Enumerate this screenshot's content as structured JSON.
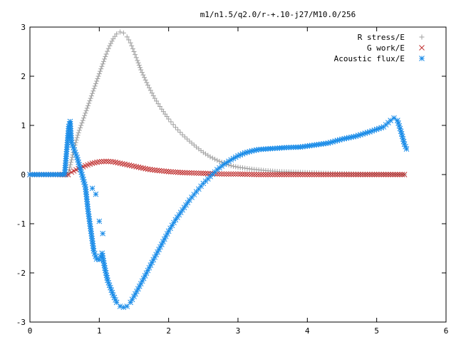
{
  "chart_data": {
    "type": "scatter",
    "title": "m1/n1.5/q2.0/r-+.10-j27/M10.0/256",
    "xlabel": "",
    "ylabel": "",
    "xlim": [
      0,
      6
    ],
    "ylim": [
      -3,
      3
    ],
    "x_ticks": [
      "0",
      "1",
      "2",
      "3",
      "4",
      "5",
      "6"
    ],
    "y_ticks": [
      "3",
      "2",
      "1",
      "0",
      "-1",
      "-2",
      "-3"
    ],
    "grid": false,
    "legend_position": "top-right",
    "series": [
      {
        "name": "R stress/E",
        "marker": "plus",
        "color": "#a0a0a0",
        "points": [
          [
            0.0,
            0.0
          ],
          [
            0.2,
            0.0
          ],
          [
            0.4,
            0.0
          ],
          [
            0.55,
            0.0
          ],
          [
            0.6,
            0.3
          ],
          [
            0.65,
            0.6
          ],
          [
            0.7,
            0.85
          ],
          [
            0.75,
            1.05
          ],
          [
            0.8,
            1.25
          ],
          [
            0.85,
            1.45
          ],
          [
            0.9,
            1.65
          ],
          [
            0.95,
            1.85
          ],
          [
            1.0,
            2.05
          ],
          [
            1.05,
            2.25
          ],
          [
            1.1,
            2.45
          ],
          [
            1.15,
            2.62
          ],
          [
            1.2,
            2.76
          ],
          [
            1.25,
            2.86
          ],
          [
            1.3,
            2.9
          ],
          [
            1.35,
            2.88
          ],
          [
            1.4,
            2.8
          ],
          [
            1.45,
            2.68
          ],
          [
            1.5,
            2.5
          ],
          [
            1.55,
            2.32
          ],
          [
            1.6,
            2.13
          ],
          [
            1.7,
            1.82
          ],
          [
            1.8,
            1.55
          ],
          [
            1.9,
            1.33
          ],
          [
            2.0,
            1.13
          ],
          [
            2.1,
            0.96
          ],
          [
            2.2,
            0.81
          ],
          [
            2.3,
            0.68
          ],
          [
            2.4,
            0.56
          ],
          [
            2.5,
            0.45
          ],
          [
            2.6,
            0.36
          ],
          [
            2.7,
            0.29
          ],
          [
            2.8,
            0.23
          ],
          [
            2.9,
            0.18
          ],
          [
            3.0,
            0.15
          ],
          [
            3.2,
            0.11
          ],
          [
            3.4,
            0.08
          ],
          [
            3.6,
            0.06
          ],
          [
            3.8,
            0.05
          ],
          [
            4.0,
            0.04
          ],
          [
            4.2,
            0.03
          ],
          [
            4.5,
            0.02
          ],
          [
            4.8,
            0.01
          ],
          [
            5.1,
            0.01
          ],
          [
            5.4,
            0.0
          ]
        ]
      },
      {
        "name": "G work/E",
        "marker": "cross",
        "color": "#c03030",
        "points": [
          [
            0.0,
            0.0
          ],
          [
            0.2,
            0.0
          ],
          [
            0.4,
            0.0
          ],
          [
            0.55,
            0.0
          ],
          [
            0.6,
            0.05
          ],
          [
            0.7,
            0.12
          ],
          [
            0.8,
            0.18
          ],
          [
            0.9,
            0.23
          ],
          [
            1.0,
            0.26
          ],
          [
            1.1,
            0.27
          ],
          [
            1.2,
            0.26
          ],
          [
            1.3,
            0.23
          ],
          [
            1.4,
            0.2
          ],
          [
            1.5,
            0.17
          ],
          [
            1.6,
            0.14
          ],
          [
            1.7,
            0.11
          ],
          [
            1.8,
            0.09
          ],
          [
            2.0,
            0.06
          ],
          [
            2.2,
            0.04
          ],
          [
            2.4,
            0.03
          ],
          [
            2.6,
            0.02
          ],
          [
            2.8,
            0.01
          ],
          [
            3.0,
            0.01
          ],
          [
            3.3,
            0.0
          ],
          [
            3.6,
            0.0
          ],
          [
            4.0,
            0.0
          ],
          [
            4.5,
            0.0
          ],
          [
            5.0,
            0.0
          ],
          [
            5.4,
            0.0
          ]
        ]
      },
      {
        "name": "Acoustic flux/E",
        "marker": "star",
        "color": "#1a8ce8",
        "points": [
          [
            0.0,
            0.0
          ],
          [
            0.2,
            0.0
          ],
          [
            0.4,
            0.0
          ],
          [
            0.5,
            0.0
          ],
          [
            0.56,
            0.98
          ],
          [
            0.58,
            1.08
          ],
          [
            0.6,
            0.65
          ],
          [
            0.64,
            0.5
          ],
          [
            0.68,
            0.35
          ],
          [
            0.72,
            0.15
          ],
          [
            0.76,
            -0.05
          ],
          [
            0.8,
            -0.25
          ],
          [
            0.84,
            -0.75
          ],
          [
            0.88,
            -1.15
          ],
          [
            0.92,
            -1.55
          ],
          [
            0.96,
            -1.72
          ],
          [
            1.0,
            -1.73
          ],
          [
            1.04,
            -1.6
          ],
          [
            1.08,
            -1.9
          ],
          [
            1.12,
            -2.15
          ],
          [
            1.16,
            -2.3
          ],
          [
            1.2,
            -2.45
          ],
          [
            1.25,
            -2.6
          ],
          [
            1.3,
            -2.68
          ],
          [
            1.35,
            -2.7
          ],
          [
            1.4,
            -2.68
          ],
          [
            1.45,
            -2.6
          ],
          [
            1.5,
            -2.48
          ],
          [
            1.6,
            -2.22
          ],
          [
            1.7,
            -1.95
          ],
          [
            1.8,
            -1.68
          ],
          [
            1.9,
            -1.42
          ],
          [
            2.0,
            -1.15
          ],
          [
            2.1,
            -0.92
          ],
          [
            2.2,
            -0.72
          ],
          [
            2.3,
            -0.52
          ],
          [
            2.4,
            -0.35
          ],
          [
            2.5,
            -0.18
          ],
          [
            2.6,
            -0.04
          ],
          [
            2.7,
            0.1
          ],
          [
            2.8,
            0.21
          ],
          [
            2.9,
            0.3
          ],
          [
            3.0,
            0.38
          ],
          [
            3.1,
            0.44
          ],
          [
            3.2,
            0.48
          ],
          [
            3.3,
            0.51
          ],
          [
            3.5,
            0.53
          ],
          [
            3.7,
            0.55
          ],
          [
            3.9,
            0.56
          ],
          [
            4.1,
            0.6
          ],
          [
            4.3,
            0.64
          ],
          [
            4.5,
            0.72
          ],
          [
            4.7,
            0.78
          ],
          [
            4.9,
            0.87
          ],
          [
            5.1,
            0.97
          ],
          [
            5.2,
            1.1
          ],
          [
            5.25,
            1.15
          ],
          [
            5.3,
            1.1
          ],
          [
            5.35,
            0.88
          ],
          [
            5.4,
            0.62
          ],
          [
            5.43,
            0.52
          ],
          [
            0.9,
            -0.28
          ],
          [
            0.95,
            -0.4
          ],
          [
            1.0,
            -0.95
          ],
          [
            1.05,
            -1.2
          ]
        ]
      }
    ]
  }
}
